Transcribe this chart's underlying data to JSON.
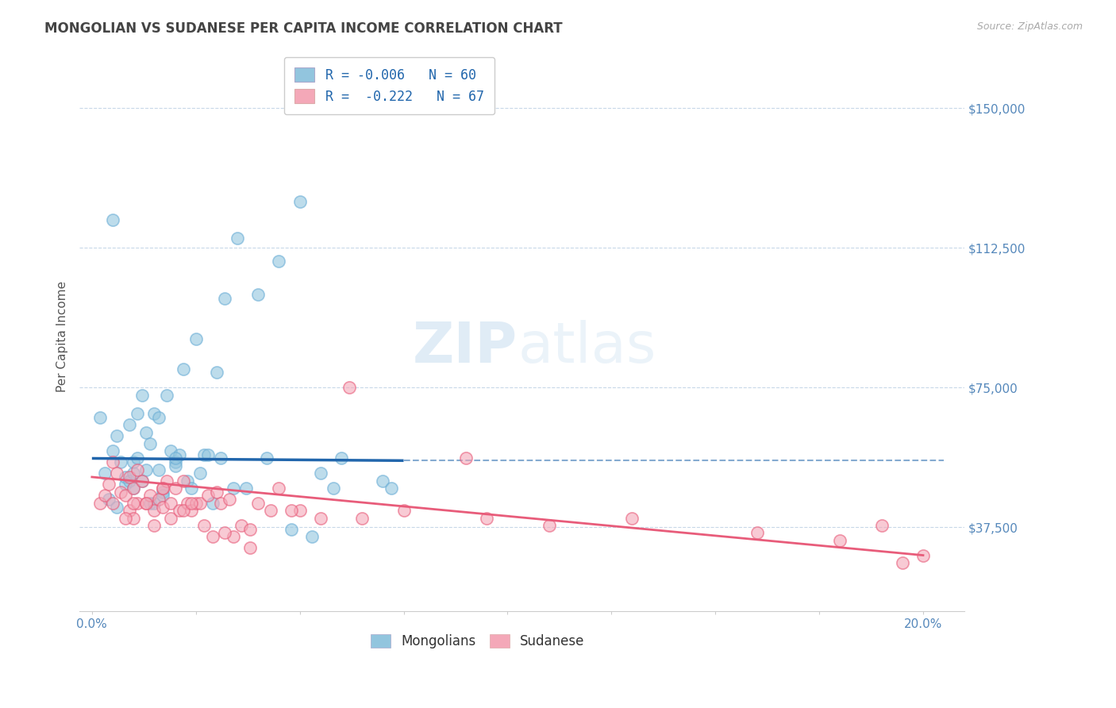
{
  "title": "MONGOLIAN VS SUDANESE PER CAPITA INCOME CORRELATION CHART",
  "source": "Source: ZipAtlas.com",
  "xlabel_ticks_show": [
    "0.0%",
    "20.0%"
  ],
  "xlabel_ticks_pos": [
    0.0,
    20.0
  ],
  "ylabel_ticks": [
    "$37,500",
    "$75,000",
    "$112,500",
    "$150,000"
  ],
  "ylabel_vals": [
    37500,
    75000,
    112500,
    150000
  ],
  "ylim": [
    15000,
    162500
  ],
  "xlim": [
    -0.3,
    21.0
  ],
  "ylabel": "Per Capita Income",
  "mongolian_color": "#92c5de",
  "sudanese_color": "#f4a8b8",
  "mongolian_edge_color": "#6baed6",
  "sudanese_edge_color": "#e85c7a",
  "mongolian_trend_color": "#2166ac",
  "sudanese_trend_color": "#e85c7a",
  "legend_line1": "R = -0.006   N = 60",
  "legend_line2": "R =  -0.222   N = 67",
  "legend_label1": "Mongolians",
  "legend_label2": "Sudanese",
  "watermark_zip": "ZIP",
  "watermark_atlas": "atlas",
  "background_color": "#ffffff",
  "grid_color": "#c8d8e8",
  "title_color": "#444444",
  "axis_tick_color": "#5588bb",
  "mongolian_scatter_x": [
    0.2,
    0.3,
    0.4,
    0.5,
    0.6,
    0.6,
    0.7,
    0.8,
    0.8,
    0.9,
    1.0,
    1.0,
    1.0,
    1.1,
    1.1,
    1.2,
    1.2,
    1.3,
    1.3,
    1.4,
    1.4,
    1.5,
    1.5,
    1.6,
    1.7,
    1.7,
    1.8,
    1.9,
    2.0,
    2.0,
    2.1,
    2.2,
    2.3,
    2.4,
    2.5,
    2.6,
    2.7,
    2.8,
    2.9,
    3.0,
    3.1,
    3.2,
    3.4,
    3.5,
    3.7,
    4.0,
    4.2,
    4.5,
    4.8,
    5.0,
    5.3,
    5.5,
    5.8,
    6.0,
    7.0,
    0.5,
    0.9,
    1.6,
    2.0,
    7.2
  ],
  "mongolian_scatter_y": [
    67000,
    52000,
    45000,
    58000,
    62000,
    43000,
    55000,
    49000,
    51000,
    50000,
    52000,
    48000,
    55000,
    56000,
    68000,
    50000,
    73000,
    63000,
    53000,
    44000,
    60000,
    68000,
    44000,
    53000,
    47000,
    46000,
    73000,
    58000,
    55000,
    54000,
    57000,
    80000,
    50000,
    48000,
    88000,
    52000,
    57000,
    57000,
    44000,
    79000,
    56000,
    99000,
    48000,
    115000,
    48000,
    100000,
    56000,
    109000,
    37000,
    125000,
    35000,
    52000,
    48000,
    56000,
    50000,
    120000,
    65000,
    67000,
    56000,
    48000
  ],
  "sudanese_scatter_x": [
    0.2,
    0.3,
    0.4,
    0.5,
    0.5,
    0.6,
    0.7,
    0.8,
    0.9,
    0.9,
    1.0,
    1.0,
    1.1,
    1.1,
    1.2,
    1.3,
    1.4,
    1.5,
    1.5,
    1.6,
    1.7,
    1.7,
    1.8,
    1.9,
    1.9,
    2.0,
    2.1,
    2.2,
    2.3,
    2.4,
    2.5,
    2.6,
    2.7,
    2.8,
    2.9,
    3.0,
    3.1,
    3.3,
    3.4,
    3.6,
    3.8,
    4.0,
    4.3,
    4.5,
    5.0,
    5.5,
    6.5,
    7.5,
    9.0,
    9.5,
    11.0,
    13.0,
    16.0,
    18.0,
    19.0,
    19.5,
    20.0,
    6.2,
    0.8,
    1.3,
    2.2,
    3.2,
    4.8,
    1.0,
    1.7,
    2.4,
    3.8
  ],
  "sudanese_scatter_y": [
    44000,
    46000,
    49000,
    55000,
    44000,
    52000,
    47000,
    46000,
    51000,
    42000,
    48000,
    40000,
    53000,
    44000,
    50000,
    44000,
    46000,
    42000,
    38000,
    45000,
    48000,
    43000,
    50000,
    44000,
    40000,
    48000,
    42000,
    50000,
    44000,
    42000,
    44000,
    44000,
    38000,
    46000,
    35000,
    47000,
    44000,
    45000,
    35000,
    38000,
    37000,
    44000,
    42000,
    48000,
    42000,
    40000,
    40000,
    42000,
    56000,
    40000,
    38000,
    40000,
    36000,
    34000,
    38000,
    28000,
    30000,
    75000,
    40000,
    44000,
    42000,
    36000,
    42000,
    44000,
    48000,
    44000,
    32000
  ],
  "mongolian_trend_x": [
    0.0,
    7.5
  ],
  "mongolian_trend_y": [
    56000,
    55400
  ],
  "sudanese_trend_x": [
    0.0,
    20.0
  ],
  "sudanese_trend_y": [
    51000,
    30000
  ],
  "dashed_line_y": 55500,
  "dashed_line_x_start": 7.5,
  "dashed_line_x_end": 20.5
}
